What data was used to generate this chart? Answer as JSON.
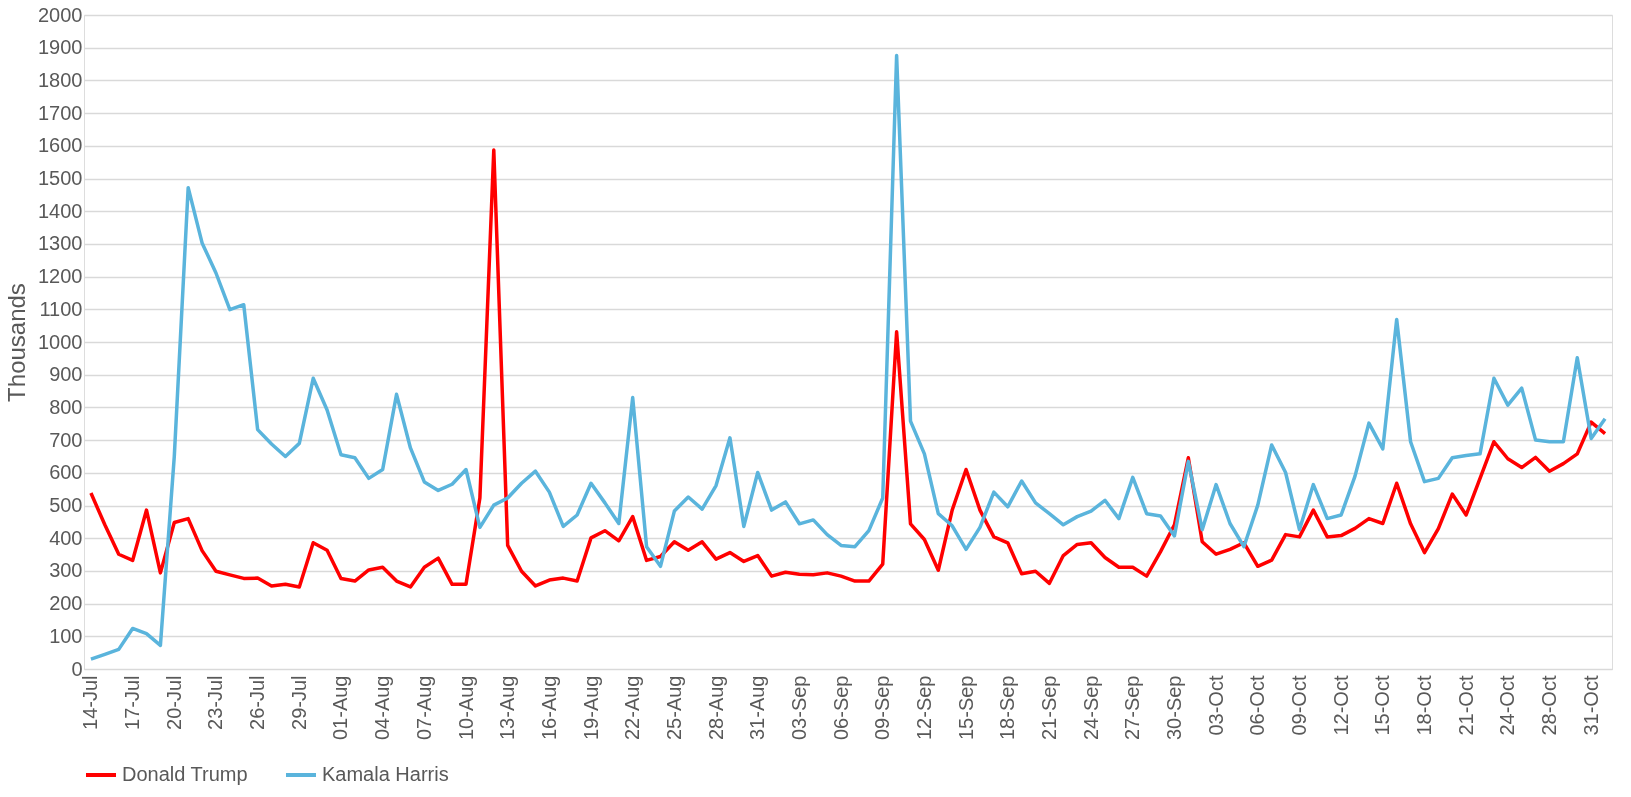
{
  "chart_data": {
    "type": "line",
    "ylabel": "Thousands",
    "ylim": [
      0,
      2000
    ],
    "yticks": [
      0,
      100,
      200,
      300,
      400,
      500,
      600,
      700,
      800,
      900,
      1000,
      1100,
      1200,
      1300,
      1400,
      1500,
      1600,
      1700,
      1800,
      1900,
      2000
    ],
    "categories": [
      "14-Jul",
      null,
      null,
      "17-Jul",
      null,
      null,
      "20-Jul",
      null,
      null,
      "23-Jul",
      null,
      null,
      "26-Jul",
      null,
      null,
      "29-Jul",
      null,
      null,
      "01-Aug",
      null,
      null,
      "04-Aug",
      null,
      null,
      "07-Aug",
      null,
      null,
      "10-Aug",
      null,
      null,
      "13-Aug",
      null,
      null,
      "16-Aug",
      null,
      null,
      "19-Aug",
      null,
      null,
      "22-Aug",
      null,
      null,
      "25-Aug",
      null,
      null,
      "28-Aug",
      null,
      null,
      "31-Aug",
      null,
      null,
      "03-Sep",
      null,
      null,
      "06-Sep",
      null,
      null,
      "09-Sep",
      null,
      null,
      "12-Sep",
      null,
      null,
      "15-Sep",
      null,
      null,
      "18-Sep",
      null,
      null,
      "21-Sep",
      null,
      null,
      "24-Sep",
      null,
      null,
      "27-Sep",
      null,
      null,
      "30-Sep",
      null,
      null,
      "03-Oct",
      null,
      null,
      "06-Oct",
      null,
      null,
      "09-Oct",
      null,
      null,
      "12-Oct",
      null,
      null,
      "15-Oct",
      null,
      null,
      "18-Oct",
      null,
      null,
      "21-Oct",
      null,
      null,
      "24-Oct",
      null,
      null,
      "28-Oct",
      null,
      null,
      "31-Oct",
      null
    ],
    "grid": "y",
    "legend": "bottom",
    "line_style": "solid",
    "marker": "none",
    "series": [
      {
        "name": "Donald Trump",
        "color": "#ff0000",
        "values": [
          538,
          441,
          351,
          332,
          486,
          294,
          448,
          460,
          362,
          299,
          288,
          277,
          278,
          254,
          259,
          251,
          386,
          363,
          277,
          269,
          303,
          311,
          269,
          251,
          311,
          339,
          259,
          259,
          523,
          1587,
          378,
          299,
          254,
          272,
          278,
          269,
          401,
          423,
          392,
          466,
          332,
          344,
          389,
          363,
          389,
          336,
          356,
          329,
          347,
          284,
          296,
          290,
          288,
          294,
          284,
          269,
          269,
          321,
          1031,
          444,
          396,
          302,
          486,
          610,
          486,
          404,
          386,
          291,
          299,
          262,
          347,
          381,
          386,
          341,
          311,
          311,
          284,
          359,
          441,
          646,
          389,
          351,
          366,
          386,
          314,
          333,
          411,
          404,
          486,
          404,
          408,
          430,
          460,
          445,
          568,
          444,
          356,
          429,
          535,
          471,
          583,
          695,
          643,
          616,
          647,
          605,
          628,
          658,
          755,
          720
        ]
      },
      {
        "name": "Kamala Harris",
        "color": "#5ab4dc",
        "values": [
          30,
          45,
          60,
          124,
          108,
          72,
          650,
          1472,
          1303,
          1211,
          1099,
          1114,
          732,
          688,
          650,
          690,
          889,
          792,
          655,
          646,
          583,
          610,
          840,
          676,
          572,
          546,
          565,
          610,
          433,
          501,
          523,
          568,
          605,
          541,
          436,
          471,
          568,
          508,
          445,
          830,
          374,
          314,
          483,
          526,
          489,
          561,
          707,
          436,
          601,
          486,
          511,
          444,
          456,
          411,
          378,
          374,
          423,
          523,
          1876,
          758,
          658,
          475,
          438,
          366,
          433,
          541,
          496,
          575,
          508,
          475,
          441,
          466,
          483,
          516,
          460,
          586,
          475,
          468,
          407,
          635,
          426,
          564,
          445,
          374,
          501,
          685,
          601,
          426,
          564,
          460,
          471,
          590,
          752,
          673,
          1069,
          695,
          573,
          583,
          646,
          653,
          658,
          889,
          807,
          859,
          700,
          695,
          695,
          952,
          705,
          765
        ]
      }
    ]
  }
}
